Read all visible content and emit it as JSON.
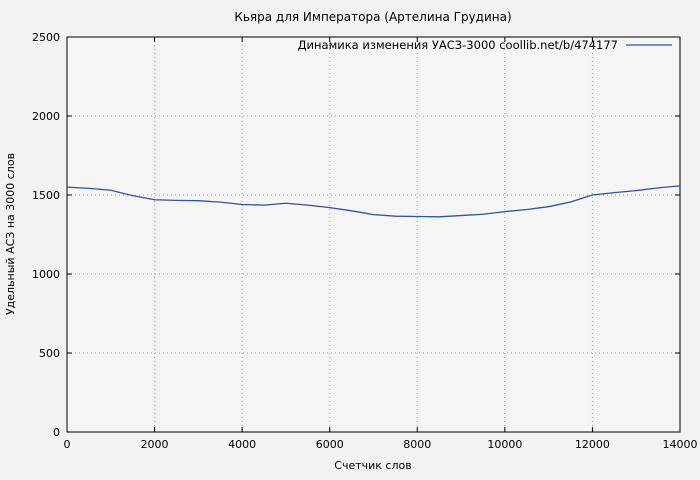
{
  "page": {
    "background": "#f2f2f2",
    "plot_background": "#f5f5f5"
  },
  "chart_data": {
    "type": "line",
    "title": "Кьяра для Императора (Артелина Грудина)",
    "legend": {
      "label": "Динамика изменения УАСЗ-3000   coollib.net/b/474177",
      "position": "top-right"
    },
    "xlabel": "Счетчик слов",
    "ylabel": "Удельный АСЗ на 3000 слов",
    "xlim": [
      0,
      14000
    ],
    "ylim": [
      0,
      2500
    ],
    "x_ticks": [
      0,
      2000,
      4000,
      6000,
      8000,
      10000,
      12000,
      14000
    ],
    "y_ticks": [
      0,
      500,
      1000,
      1500,
      2000,
      2500
    ],
    "grid": true,
    "grid_color": "#9a9a9a",
    "line_color": "#34519c",
    "axis_color": "#000000",
    "series": [
      {
        "name": "Динамика изменения УАСЗ-3000",
        "x": [
          0,
          500,
          1000,
          1500,
          2000,
          2500,
          3000,
          3500,
          4000,
          4500,
          5000,
          5500,
          6000,
          6500,
          7000,
          7500,
          8000,
          8500,
          9000,
          9500,
          10000,
          10500,
          11000,
          11500,
          12000,
          12500,
          13000,
          13500,
          14000
        ],
        "y": [
          1550,
          1542,
          1530,
          1496,
          1470,
          1466,
          1464,
          1455,
          1440,
          1436,
          1448,
          1436,
          1420,
          1400,
          1376,
          1366,
          1364,
          1362,
          1370,
          1378,
          1395,
          1408,
          1426,
          1456,
          1500,
          1515,
          1528,
          1545,
          1558
        ]
      }
    ]
  }
}
